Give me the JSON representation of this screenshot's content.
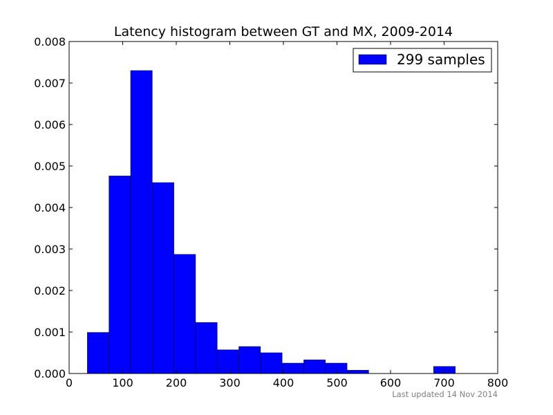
{
  "chart_data": {
    "type": "bar",
    "title": "Latency histogram between GT and MX, 2009-2014",
    "xlabel": "",
    "ylabel": "",
    "xlim": [
      0,
      800
    ],
    "ylim": [
      0,
      0.008
    ],
    "x_ticks": [
      "0",
      "100",
      "200",
      "300",
      "400",
      "500",
      "600",
      "700",
      "800"
    ],
    "y_ticks": [
      "0.000",
      "0.001",
      "0.002",
      "0.003",
      "0.004",
      "0.005",
      "0.006",
      "0.007",
      "0.008"
    ],
    "grid": false,
    "legend_position": "top-right",
    "series": [
      {
        "name": "299 samples",
        "color": "#0000ff",
        "bins": [
          {
            "start": 34,
            "end": 74.4,
            "value": 0.00099
          },
          {
            "start": 74.4,
            "end": 114.8,
            "value": 0.00476
          },
          {
            "start": 114.8,
            "end": 155.2,
            "value": 0.0073
          },
          {
            "start": 155.2,
            "end": 195.6,
            "value": 0.0046
          },
          {
            "start": 195.6,
            "end": 236.0,
            "value": 0.00287
          },
          {
            "start": 236.0,
            "end": 276.4,
            "value": 0.00123
          },
          {
            "start": 276.4,
            "end": 316.8,
            "value": 0.00057
          },
          {
            "start": 316.8,
            "end": 357.2,
            "value": 0.00065
          },
          {
            "start": 357.2,
            "end": 397.6,
            "value": 0.0005
          },
          {
            "start": 397.6,
            "end": 438.0,
            "value": 0.00025
          },
          {
            "start": 438.0,
            "end": 478.4,
            "value": 0.00033
          },
          {
            "start": 478.4,
            "end": 518.8,
            "value": 0.00025
          },
          {
            "start": 518.8,
            "end": 559.2,
            "value": 8e-05
          },
          {
            "start": 559.2,
            "end": 599.6,
            "value": 0
          },
          {
            "start": 599.6,
            "end": 640.0,
            "value": 0
          },
          {
            "start": 640.0,
            "end": 680.4,
            "value": 0
          },
          {
            "start": 680.4,
            "end": 720.8,
            "value": 0.00017
          }
        ]
      }
    ],
    "footnote": "Last updated 14 Nov 2014"
  }
}
